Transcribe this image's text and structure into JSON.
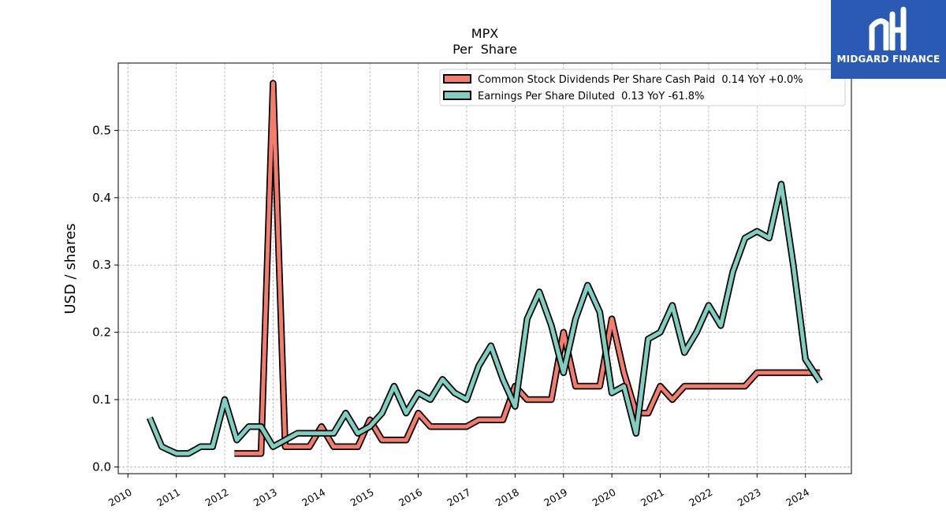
{
  "brand": {
    "name": "MIDGARD FINANCE",
    "icon": "midgard-logo-icon",
    "background_color": "#2a5ab4"
  },
  "chart_data": {
    "type": "line",
    "title": "MPX",
    "subtitle": "Per  Share",
    "xlabel": "",
    "ylabel": "USD / shares",
    "xlim": [
      2009.8,
      2024.95
    ],
    "ylim": [
      -0.01,
      0.6
    ],
    "x_ticks": [
      "2010",
      "2011",
      "2012",
      "2013",
      "2014",
      "2015",
      "2016",
      "2017",
      "2018",
      "2019",
      "2020",
      "2021",
      "2022",
      "2023",
      "2024"
    ],
    "y_ticks": [
      "0.0",
      "0.1",
      "0.2",
      "0.3",
      "0.4",
      "0.5"
    ],
    "grid": true,
    "legend_position": "top-right",
    "series": [
      {
        "name": "Common Stock Dividends Per Share Cash Paid  0.14 YoY +0.0%",
        "color": "#f47c6c",
        "points": [
          [
            2012.2,
            0.02
          ],
          [
            2012.45,
            0.02
          ],
          [
            2012.75,
            0.02
          ],
          [
            2013.0,
            0.57
          ],
          [
            2013.25,
            0.03
          ],
          [
            2013.5,
            0.03
          ],
          [
            2013.75,
            0.03
          ],
          [
            2014.0,
            0.06
          ],
          [
            2014.25,
            0.03
          ],
          [
            2014.5,
            0.03
          ],
          [
            2014.75,
            0.03
          ],
          [
            2015.0,
            0.07
          ],
          [
            2015.25,
            0.04
          ],
          [
            2015.5,
            0.04
          ],
          [
            2015.75,
            0.04
          ],
          [
            2016.0,
            0.08
          ],
          [
            2016.25,
            0.06
          ],
          [
            2016.5,
            0.06
          ],
          [
            2016.75,
            0.06
          ],
          [
            2017.0,
            0.06
          ],
          [
            2017.25,
            0.07
          ],
          [
            2017.5,
            0.07
          ],
          [
            2017.75,
            0.07
          ],
          [
            2018.0,
            0.12
          ],
          [
            2018.25,
            0.1
          ],
          [
            2018.5,
            0.1
          ],
          [
            2018.75,
            0.1
          ],
          [
            2019.0,
            0.2
          ],
          [
            2019.25,
            0.12
          ],
          [
            2019.5,
            0.12
          ],
          [
            2019.75,
            0.12
          ],
          [
            2020.0,
            0.22
          ],
          [
            2020.25,
            0.14
          ],
          [
            2020.5,
            0.08
          ],
          [
            2020.75,
            0.08
          ],
          [
            2021.0,
            0.12
          ],
          [
            2021.25,
            0.1
          ],
          [
            2021.5,
            0.12
          ],
          [
            2021.75,
            0.12
          ],
          [
            2022.0,
            0.12
          ],
          [
            2022.25,
            0.12
          ],
          [
            2022.5,
            0.12
          ],
          [
            2022.75,
            0.12
          ],
          [
            2023.0,
            0.14
          ],
          [
            2023.25,
            0.14
          ],
          [
            2023.5,
            0.14
          ],
          [
            2023.75,
            0.14
          ],
          [
            2024.0,
            0.14
          ],
          [
            2024.3,
            0.14
          ]
        ]
      },
      {
        "name": "Earnings Per Share Diluted  0.13 YoY -61.8%",
        "color": "#7fcec0",
        "points": [
          [
            2010.45,
            0.073
          ],
          [
            2010.7,
            0.03
          ],
          [
            2011.0,
            0.02
          ],
          [
            2011.25,
            0.02
          ],
          [
            2011.5,
            0.03
          ],
          [
            2011.75,
            0.03
          ],
          [
            2012.0,
            0.1
          ],
          [
            2012.25,
            0.04
          ],
          [
            2012.5,
            0.06
          ],
          [
            2012.75,
            0.06
          ],
          [
            2013.0,
            0.03
          ],
          [
            2013.25,
            0.04
          ],
          [
            2013.5,
            0.05
          ],
          [
            2013.75,
            0.05
          ],
          [
            2014.0,
            0.05
          ],
          [
            2014.25,
            0.05
          ],
          [
            2014.5,
            0.08
          ],
          [
            2014.75,
            0.05
          ],
          [
            2015.0,
            0.06
          ],
          [
            2015.25,
            0.08
          ],
          [
            2015.5,
            0.12
          ],
          [
            2015.75,
            0.08
          ],
          [
            2016.0,
            0.11
          ],
          [
            2016.25,
            0.1
          ],
          [
            2016.5,
            0.13
          ],
          [
            2016.75,
            0.11
          ],
          [
            2017.0,
            0.1
          ],
          [
            2017.25,
            0.15
          ],
          [
            2017.5,
            0.18
          ],
          [
            2017.75,
            0.13
          ],
          [
            2018.0,
            0.09
          ],
          [
            2018.25,
            0.22
          ],
          [
            2018.5,
            0.26
          ],
          [
            2018.75,
            0.21
          ],
          [
            2019.0,
            0.14
          ],
          [
            2019.25,
            0.22
          ],
          [
            2019.5,
            0.27
          ],
          [
            2019.75,
            0.23
          ],
          [
            2020.0,
            0.11
          ],
          [
            2020.25,
            0.12
          ],
          [
            2020.5,
            0.05
          ],
          [
            2020.75,
            0.19
          ],
          [
            2021.0,
            0.2
          ],
          [
            2021.25,
            0.24
          ],
          [
            2021.5,
            0.17
          ],
          [
            2021.75,
            0.2
          ],
          [
            2022.0,
            0.24
          ],
          [
            2022.25,
            0.21
          ],
          [
            2022.5,
            0.29
          ],
          [
            2022.75,
            0.34
          ],
          [
            2023.0,
            0.35
          ],
          [
            2023.25,
            0.34
          ],
          [
            2023.5,
            0.42
          ],
          [
            2023.75,
            0.3
          ],
          [
            2024.0,
            0.16
          ],
          [
            2024.3,
            0.127
          ]
        ]
      }
    ]
  }
}
